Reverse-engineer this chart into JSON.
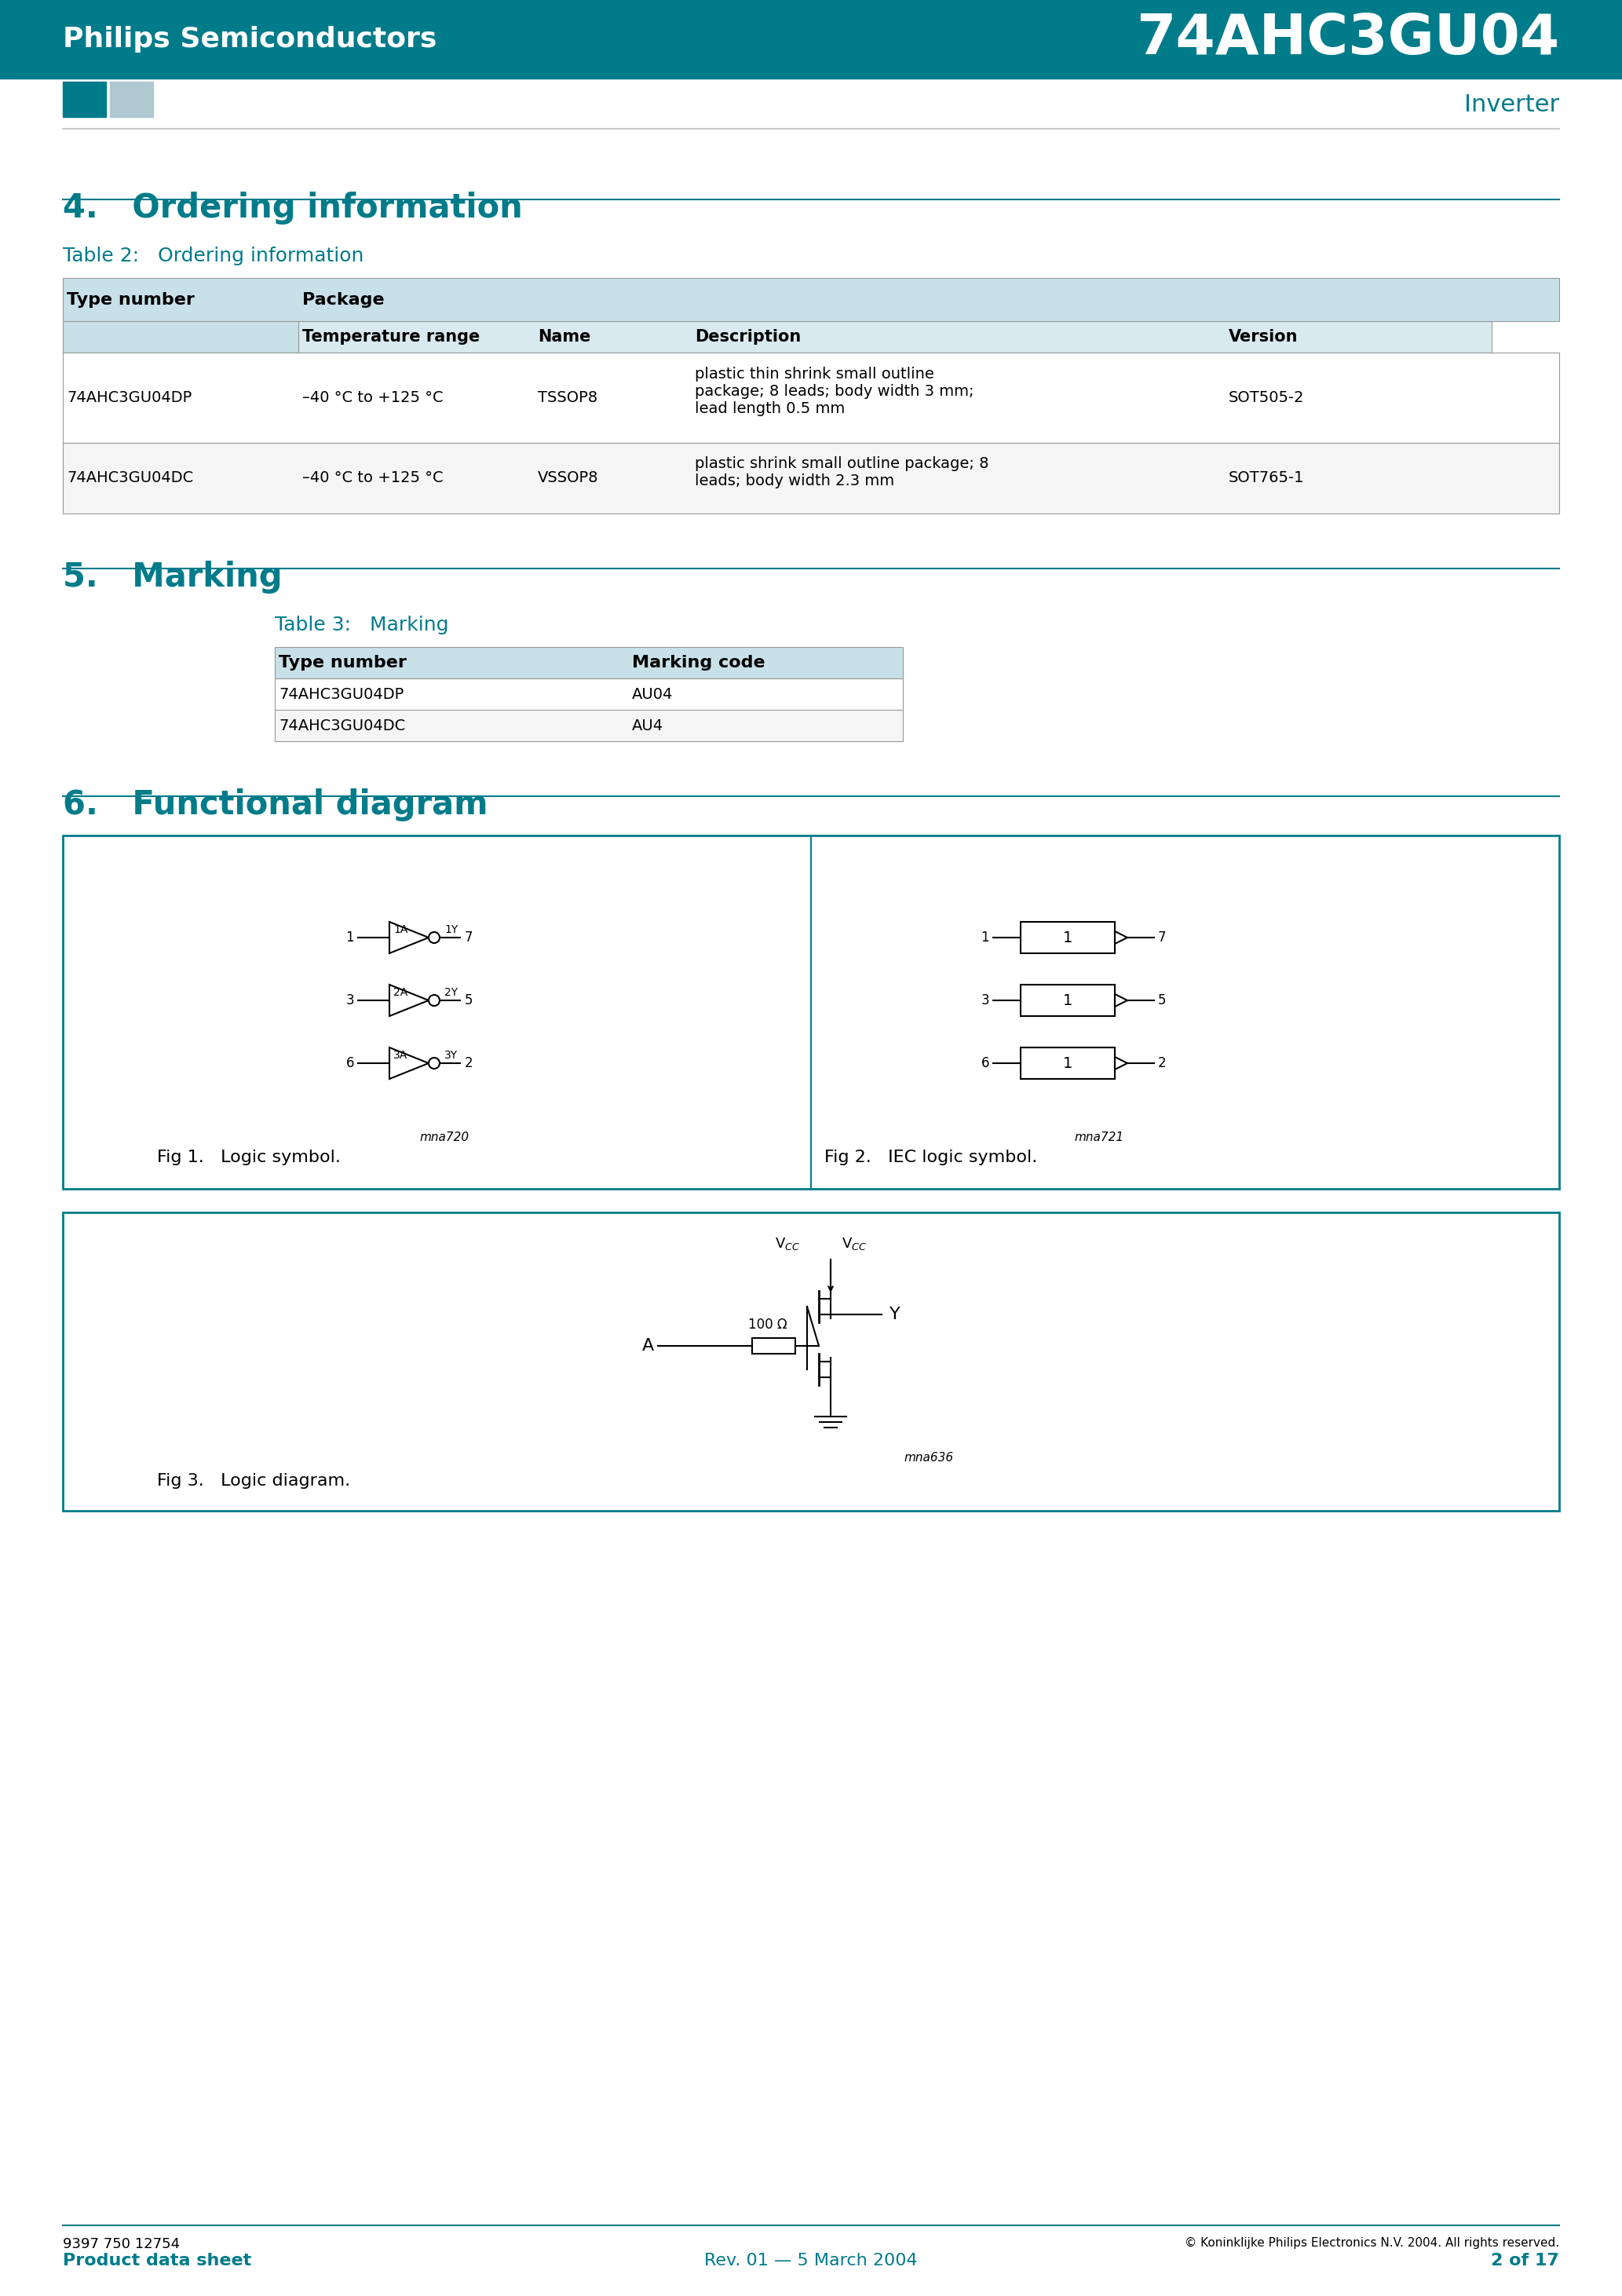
{
  "page_bg": "#ffffff",
  "teal_color": "#007b8a",
  "teal_dark": "#006070",
  "header_bg": "#ffffff",
  "table_header_bg": "#e8f4f8",
  "table_subheader_bg": "#d4eaf0",
  "company": "Philips Semiconductors",
  "product": "74AHC3GU04",
  "subtitle": "Inverter",
  "section4_title": "4.   Ordering information",
  "section5_title": "5.   Marking",
  "section6_title": "6.   Functional diagram",
  "table2_title": "Table 2:   Ordering information",
  "table3_title": "Table 3:   Marking",
  "ordering_cols": [
    "Type number",
    "Package",
    "",
    "",
    ""
  ],
  "ordering_subcols": [
    "",
    "Temperature range",
    "Name",
    "Description",
    "Version"
  ],
  "ordering_rows": [
    [
      "74AHC3GU04DP",
      "–40 °C to +125 °C",
      "TSSOP8",
      "plastic thin shrink small outline\npackage; 8 leads; body width 3 mm;\nlead length 0.5 mm",
      "SOT505-2"
    ],
    [
      "74AHC3GU04DC",
      "–40 °C to +125 °C",
      "VSSOP8",
      "plastic shrink small outline package; 8\nleads; body width 2.3 mm",
      "SOT765-1"
    ]
  ],
  "marking_rows": [
    [
      "74AHC3GU04DP",
      "AU04"
    ],
    [
      "74AHC3GU04DC",
      "AU4"
    ]
  ],
  "footer_left": "9397 750 12754",
  "footer_product": "Product data sheet",
  "footer_rev": "Rev. 01 — 5 March 2004",
  "footer_copy": "© Koninklijke Philips Electronics N.V. 2004. All rights reserved.",
  "footer_page": "2 of 17"
}
